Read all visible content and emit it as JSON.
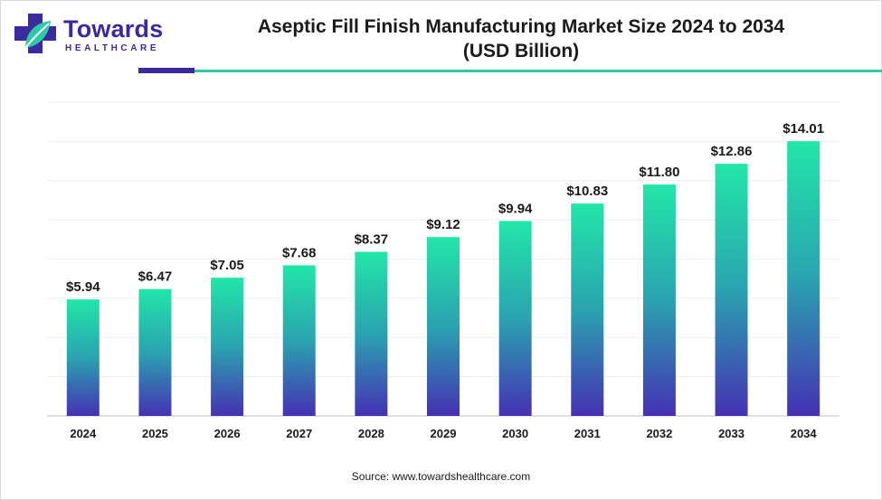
{
  "brand": {
    "name": "Towards",
    "tagline": "HEALTHCARE",
    "colors": {
      "primary": "#3b2a9e",
      "accent": "#2ec9a5"
    }
  },
  "chart_data": {
    "type": "bar",
    "title_line1": "Aseptic Fill Finish Manufacturing Market Size 2024 to 2034",
    "title_line2": "(USD Billion)",
    "categories": [
      "2024",
      "2025",
      "2026",
      "2027",
      "2028",
      "2029",
      "2030",
      "2031",
      "2032",
      "2033",
      "2034"
    ],
    "values": [
      5.94,
      6.47,
      7.05,
      7.68,
      8.37,
      9.12,
      9.94,
      10.83,
      11.8,
      12.86,
      14.01
    ],
    "value_labels": [
      "$5.94",
      "$6.47",
      "$7.05",
      "$7.68",
      "$8.37",
      "$9.12",
      "$9.94",
      "$10.83",
      "$11.80",
      "$12.86",
      "$14.01"
    ],
    "xlabel": "",
    "ylabel": "",
    "ylim": [
      0,
      16
    ],
    "grid": true,
    "legend": "none",
    "bar_gradient": {
      "top": "#22e6a8",
      "bottom": "#4531b3"
    }
  },
  "source": "Source: www.towardshealthcare.com"
}
